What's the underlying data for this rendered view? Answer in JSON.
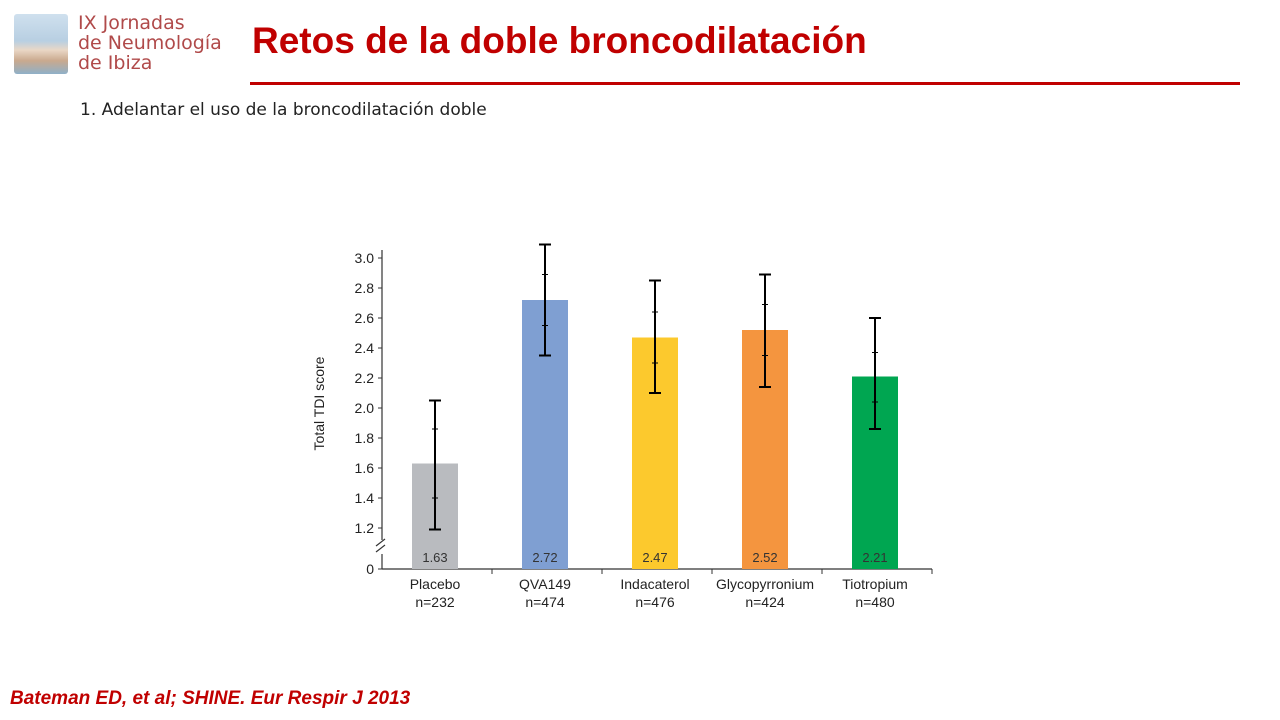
{
  "header": {
    "logo_lines": [
      "IX Jornadas",
      "de Neumología",
      "de Ibiza"
    ],
    "title": "Retos de la doble broncodilatación",
    "subtitle": "1. Adelantar el uso de la broncodilatación doble"
  },
  "colors": {
    "title": "#c00000",
    "placebo": "#b9bbbf",
    "qva149": "#7f9fd2",
    "indacaterol": "#fcc92d",
    "glycopyrronium": "#f4953f",
    "tiotropium": "#00a651"
  },
  "chart_data": {
    "type": "bar",
    "ylabel": "Total TDI score",
    "ylim": [
      1.0,
      3.0
    ],
    "yticks": [
      "0",
      "1.2",
      "1.4",
      "1.6",
      "1.8",
      "2.0",
      "2.2",
      "2.4",
      "2.6",
      "2.8",
      "3.0"
    ],
    "axis_break": true,
    "categories": [
      "Placebo",
      "QVA149",
      "Indacaterol",
      "Glycopyrronium",
      "Tiotropium"
    ],
    "n_labels": [
      "n=232",
      "n=474",
      "n=476",
      "n=424",
      "n=480"
    ],
    "values": [
      1.63,
      2.72,
      2.47,
      2.52,
      2.21
    ],
    "value_labels": [
      "1.63",
      "2.72",
      "2.47",
      "2.52",
      "2.21"
    ],
    "error_low": [
      1.19,
      2.35,
      2.1,
      2.14,
      1.86
    ],
    "error_high": [
      2.05,
      3.09,
      2.85,
      2.89,
      2.6
    ],
    "inner_low": [
      1.4,
      2.55,
      2.3,
      2.35,
      2.04
    ],
    "inner_high": [
      1.86,
      2.89,
      2.64,
      2.69,
      2.37
    ],
    "bar_colors": [
      "#b9bbbf",
      "#7f9fd2",
      "#fcc92d",
      "#f4953f",
      "#00a651"
    ]
  },
  "citation": "Bateman ED, et al; SHINE. Eur Respir J 2013"
}
